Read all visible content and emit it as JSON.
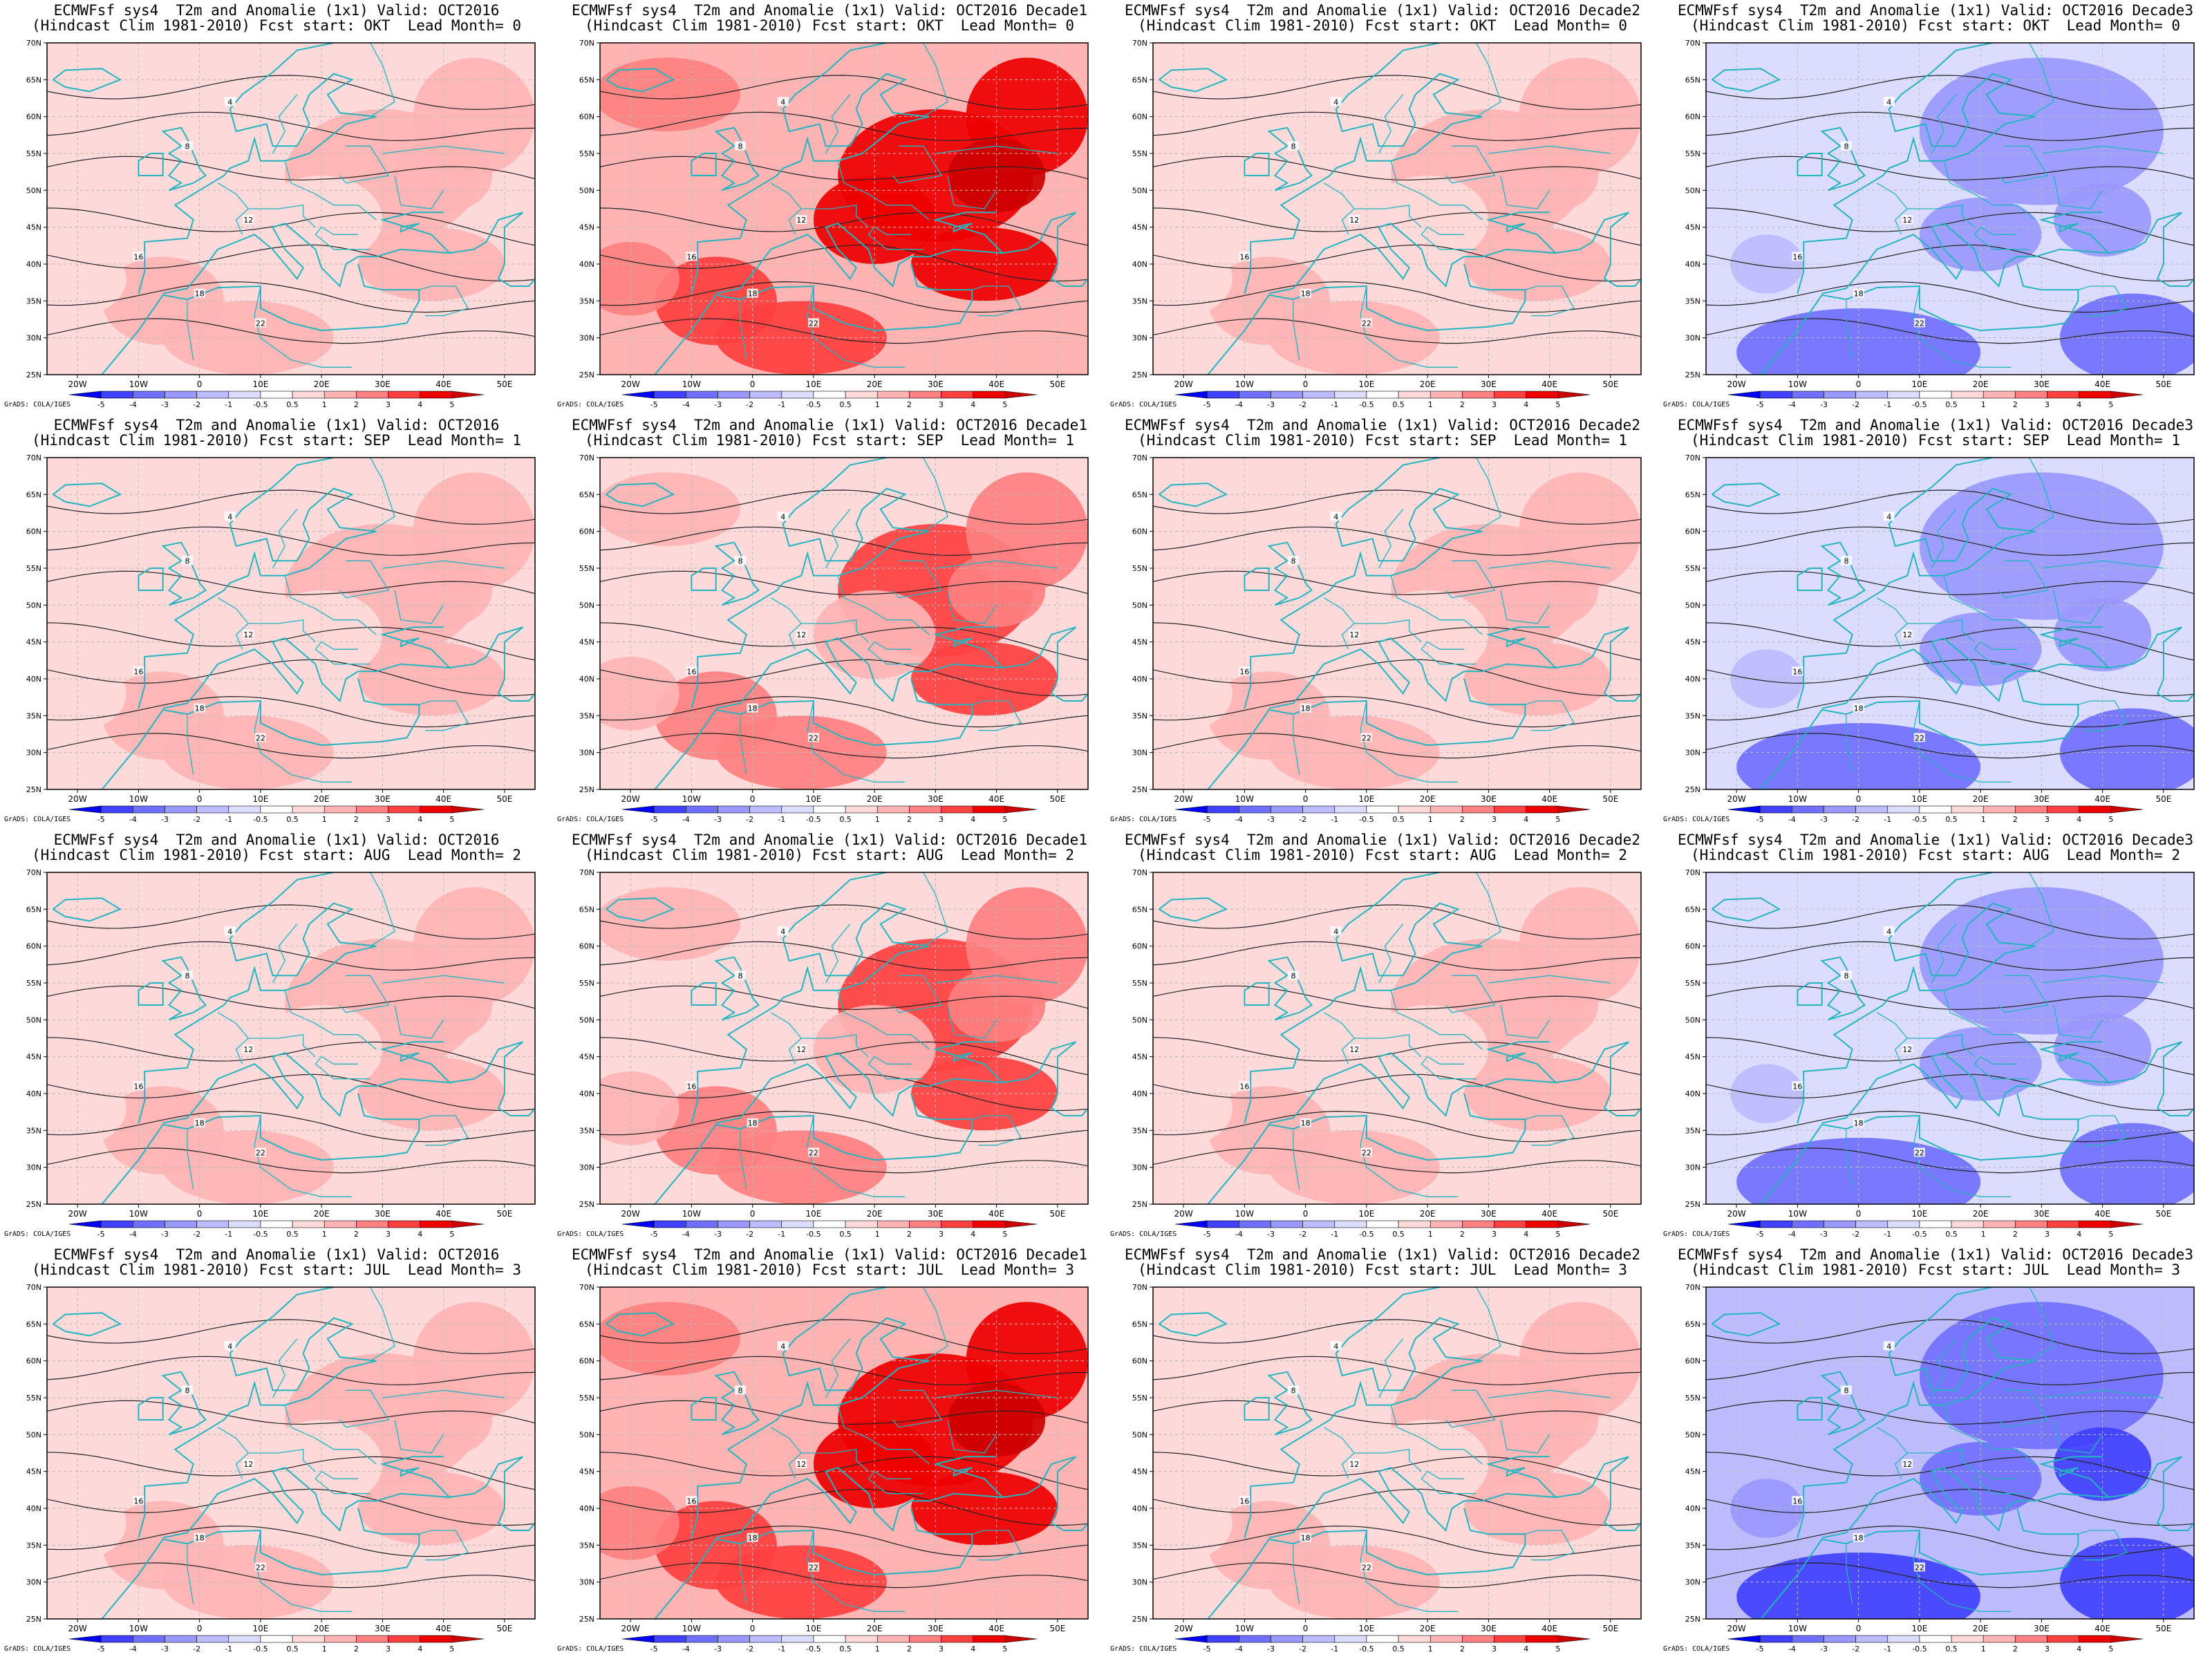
{
  "credit": "GrADS: COLA/IGES",
  "legend_values": [
    "-5",
    "-4",
    "-3",
    "-2",
    "-1",
    "-0.5",
    "0.5",
    "1",
    "2",
    "3",
    "4",
    "5"
  ],
  "legend_colors": [
    "#0000ff",
    "#4040ff",
    "#7070ff",
    "#9898ff",
    "#bcbcff",
    "#dcdcff",
    "#ffffff",
    "#ffdada",
    "#ffb4b4",
    "#ff8080",
    "#ff4040",
    "#ee0000",
    "#cc0000"
  ],
  "lat_labels": [
    "70N",
    "65N",
    "60N",
    "55N",
    "50N",
    "45N",
    "40N",
    "35N",
    "30N",
    "25N"
  ],
  "lon_labels": [
    "20W",
    "10W",
    "0",
    "10E",
    "20E",
    "30E",
    "40E",
    "50E"
  ],
  "panels": [
    {
      "line1": "ECMWFsf sys4  T2m and Anomalie (1x1) Valid: OCT2016",
      "line2": "(Hindcast Clim 1981-2010) Fcst start: OKT  Lead Month= 0",
      "tone": "warm",
      "level": 1
    },
    {
      "line1": "ECMWFsf sys4  T2m and Anomalie (1x1) Valid: OCT2016 Decade1",
      "line2": "(Hindcast Clim 1981-2010) Fcst start: OKT  Lead Month= 0",
      "tone": "warm",
      "level": 3
    },
    {
      "line1": "ECMWFsf sys4  T2m and Anomalie (1x1) Valid: OCT2016 Decade2",
      "line2": "(Hindcast Clim 1981-2010) Fcst start: OKT  Lead Month= 0",
      "tone": "warm",
      "level": 1
    },
    {
      "line1": "ECMWFsf sys4  T2m and Anomalie (1x1) Valid: OCT2016 Decade3",
      "line2": "(Hindcast Clim 1981-2010) Fcst start: OKT  Lead Month= 0",
      "tone": "cool",
      "level": 2
    },
    {
      "line1": "ECMWFsf sys4  T2m and Anomalie (1x1) Valid: OCT2016",
      "line2": "(Hindcast Clim 1981-2010) Fcst start: SEP  Lead Month= 1",
      "tone": "warm",
      "level": 1
    },
    {
      "line1": "ECMWFsf sys4  T2m and Anomalie (1x1) Valid: OCT2016 Decade1",
      "line2": "(Hindcast Clim 1981-2010) Fcst start: SEP  Lead Month= 1",
      "tone": "warm",
      "level": 2
    },
    {
      "line1": "ECMWFsf sys4  T2m and Anomalie (1x1) Valid: OCT2016 Decade2",
      "line2": "(Hindcast Clim 1981-2010) Fcst start: SEP  Lead Month= 1",
      "tone": "warm",
      "level": 1
    },
    {
      "line1": "ECMWFsf sys4  T2m and Anomalie (1x1) Valid: OCT2016 Decade3",
      "line2": "(Hindcast Clim 1981-2010) Fcst start: SEP  Lead Month= 1",
      "tone": "cool",
      "level": 2
    },
    {
      "line1": "ECMWFsf sys4  T2m and Anomalie (1x1) Valid: OCT2016",
      "line2": "(Hindcast Clim 1981-2010) Fcst start: AUG  Lead Month= 2",
      "tone": "warm",
      "level": 1
    },
    {
      "line1": "ECMWFsf sys4  T2m and Anomalie (1x1) Valid: OCT2016 Decade1",
      "line2": "(Hindcast Clim 1981-2010) Fcst start: AUG  Lead Month= 2",
      "tone": "warm",
      "level": 2
    },
    {
      "line1": "ECMWFsf sys4  T2m and Anomalie (1x1) Valid: OCT2016 Decade2",
      "line2": "(Hindcast Clim 1981-2010) Fcst start: AUG  Lead Month= 2",
      "tone": "warm",
      "level": 1
    },
    {
      "line1": "ECMWFsf sys4  T2m and Anomalie (1x1) Valid: OCT2016 Decade3",
      "line2": "(Hindcast Clim 1981-2010) Fcst start: AUG  Lead Month= 2",
      "tone": "cool",
      "level": 2
    },
    {
      "line1": "ECMWFsf sys4  T2m and Anomalie (1x1) Valid: OCT2016",
      "line2": "(Hindcast Clim 1981-2010) Fcst start: JUL  Lead Month= 3",
      "tone": "warm",
      "level": 1
    },
    {
      "line1": "ECMWFsf sys4  T2m and Anomalie (1x1) Valid: OCT2016 Decade1",
      "line2": "(Hindcast Clim 1981-2010) Fcst start: JUL  Lead Month= 3",
      "tone": "warm",
      "level": 3
    },
    {
      "line1": "ECMWFsf sys4  T2m and Anomalie (1x1) Valid: OCT2016 Decade2",
      "line2": "(Hindcast Clim 1981-2010) Fcst start: JUL  Lead Month= 3",
      "tone": "warm",
      "level": 1
    },
    {
      "line1": "ECMWFsf sys4  T2m and Anomalie (1x1) Valid: OCT2016 Decade3",
      "line2": "(Hindcast Clim 1981-2010) Fcst start: JUL  Lead Month= 3",
      "tone": "cool",
      "level": 3
    }
  ],
  "contour_labels": [
    "4",
    "8",
    "12",
    "16",
    "18",
    "22"
  ],
  "colors": {
    "coast": "#22b5c0",
    "contour": "#222222",
    "frame": "#000000",
    "grid_dash": "#bbbbbb"
  }
}
